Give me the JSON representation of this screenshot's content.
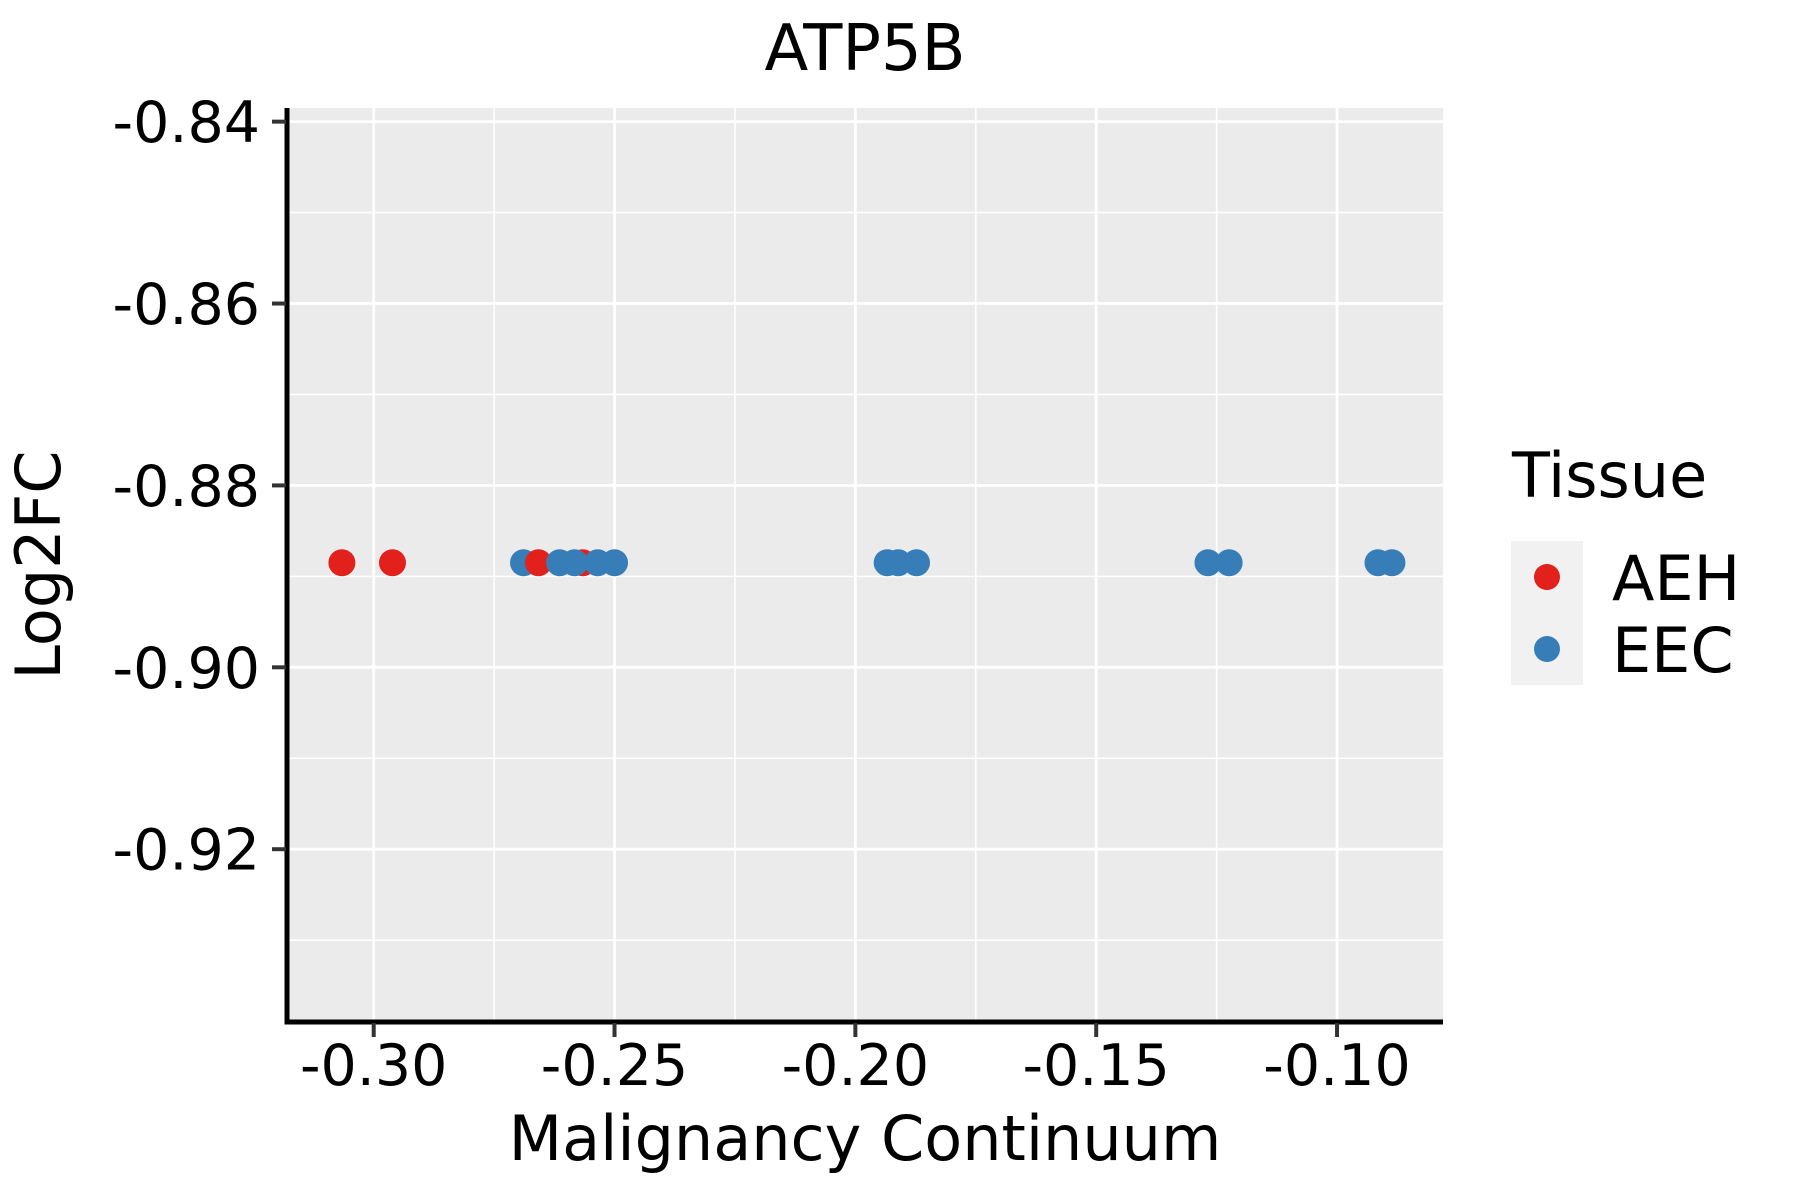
{
  "chart_data": {
    "type": "scatter",
    "title": "ATP5B",
    "xlabel": "Malignancy Continuum",
    "ylabel": "Log2FC",
    "xlim": [
      -0.318,
      -0.078
    ],
    "ylim": [
      -0.939,
      -0.8385
    ],
    "x_ticks": {
      "values": [
        -0.3,
        -0.25,
        -0.2,
        -0.15,
        -0.1
      ],
      "labels": [
        "-0.30",
        "-0.25",
        "-0.20",
        "-0.15",
        "-0.10"
      ]
    },
    "y_ticks": {
      "values": [
        -0.84,
        -0.86,
        -0.88,
        -0.9,
        -0.92
      ],
      "labels": [
        "-0.84",
        "-0.86",
        "-0.88",
        "-0.90",
        "-0.92"
      ]
    },
    "x_minor_step": 0.025,
    "y_minor_step": 0.01,
    "grid": {
      "major": true,
      "minor": true,
      "color": "#ffffff",
      "panel_fill": "#ebebeb"
    },
    "legend": {
      "title": "Tissue",
      "position": "right",
      "key_fill": "#f1f1f1"
    },
    "series": [
      {
        "name": "AEH",
        "color": "#e2211c"
      },
      {
        "name": "EEC",
        "color": "#377eb8"
      }
    ],
    "points": [
      {
        "series": "AEH",
        "x": -0.3066,
        "y": -0.8885
      },
      {
        "series": "AEH",
        "x": -0.2961,
        "y": -0.8885
      },
      {
        "series": "EEC",
        "x": -0.2689,
        "y": -0.8885
      },
      {
        "series": "AEH",
        "x": -0.2658,
        "y": -0.8885
      },
      {
        "series": "AEH",
        "x": -0.2566,
        "y": -0.8885
      },
      {
        "series": "EEC",
        "x": -0.2614,
        "y": -0.8885
      },
      {
        "series": "EEC",
        "x": -0.2583,
        "y": -0.8885
      },
      {
        "series": "EEC",
        "x": -0.2535,
        "y": -0.8885
      },
      {
        "series": "EEC",
        "x": -0.25,
        "y": -0.8885
      },
      {
        "series": "EEC",
        "x": -0.1934,
        "y": -0.8885
      },
      {
        "series": "EEC",
        "x": -0.1911,
        "y": -0.8885
      },
      {
        "series": "EEC",
        "x": -0.1873,
        "y": -0.8885
      },
      {
        "series": "EEC",
        "x": -0.1268,
        "y": -0.8885
      },
      {
        "series": "EEC",
        "x": -0.1224,
        "y": -0.8885
      },
      {
        "series": "EEC",
        "x": -0.0915,
        "y": -0.8885
      },
      {
        "series": "EEC",
        "x": -0.0886,
        "y": -0.8885
      }
    ],
    "point_radius_px": 13.5,
    "axis_color": "#000000",
    "tick_color": "#333333"
  }
}
